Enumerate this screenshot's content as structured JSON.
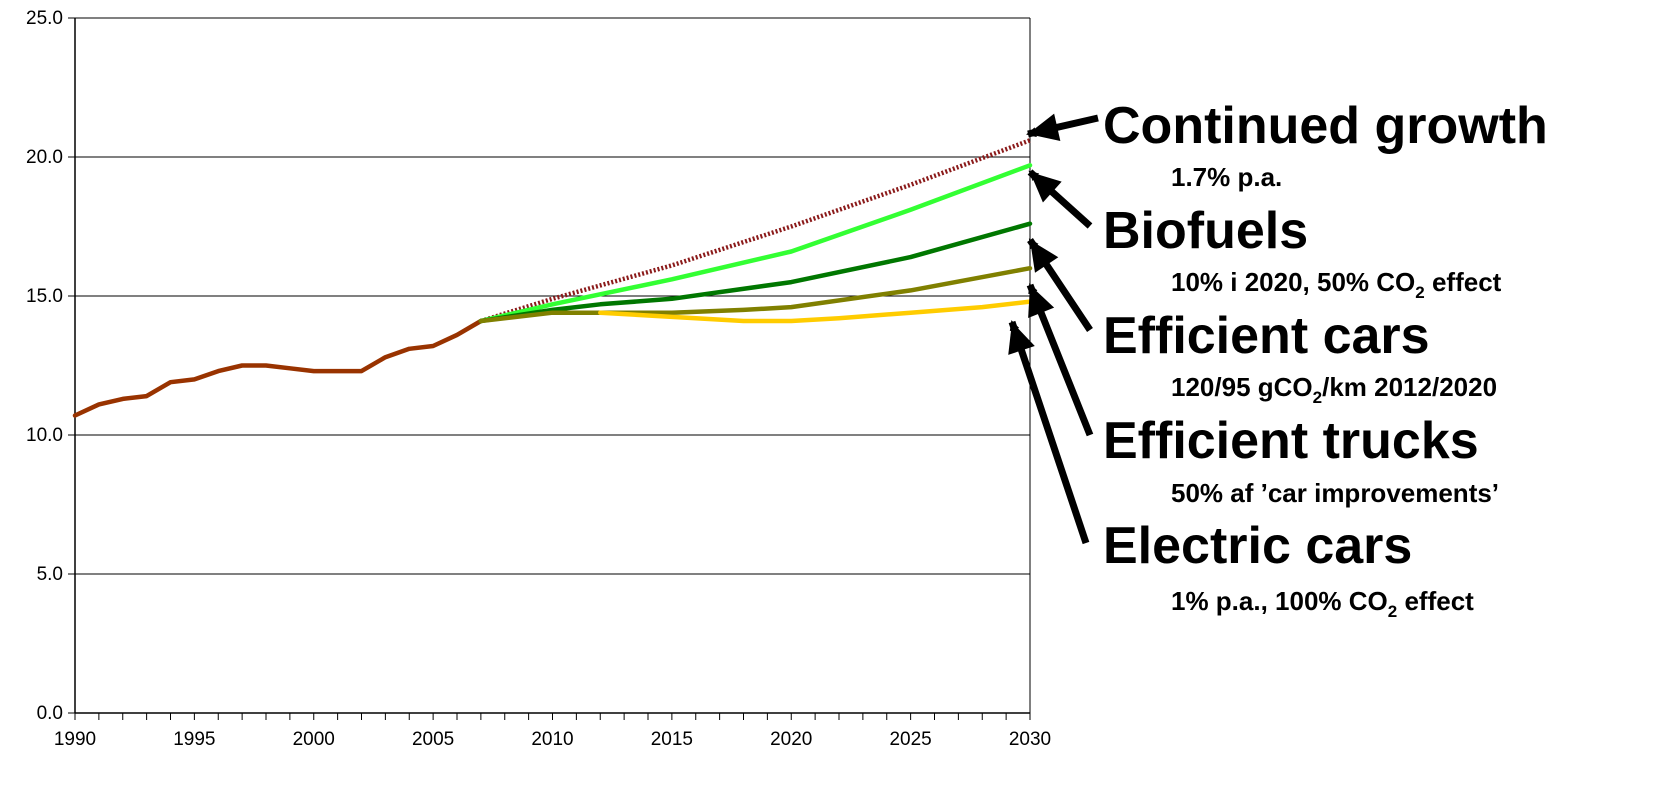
{
  "chart_data": {
    "type": "line",
    "title": "",
    "xlabel": "",
    "ylabel": "",
    "xlim": [
      1990,
      2030
    ],
    "ylim": [
      0,
      25
    ],
    "x_ticks": [
      "1990",
      "1995",
      "2000",
      "2005",
      "2010",
      "2015",
      "2020",
      "2025",
      "2030"
    ],
    "y_ticks": [
      "0.0",
      "5.0",
      "10.0",
      "15.0",
      "20.0",
      "25.0"
    ],
    "grid": "horizontal",
    "legend": "none",
    "series": [
      {
        "key": "historical",
        "color": "#993300",
        "dashed": false,
        "x": [
          1990,
          1991,
          1992,
          1993,
          1994,
          1995,
          1996,
          1997,
          1998,
          1999,
          2000,
          2001,
          2002,
          2003,
          2004,
          2005,
          2006,
          2007
        ],
        "y": [
          10.7,
          11.1,
          11.3,
          11.4,
          11.9,
          12.0,
          12.3,
          12.5,
          12.5,
          12.4,
          12.3,
          12.3,
          12.3,
          12.8,
          13.1,
          13.2,
          13.6,
          14.1
        ]
      },
      {
        "key": "continued-growth",
        "color": "#8B1A1A",
        "dashed": true,
        "x": [
          2007,
          2010,
          2015,
          2020,
          2025,
          2030
        ],
        "y": [
          14.1,
          14.9,
          16.1,
          17.5,
          19.0,
          20.6
        ]
      },
      {
        "key": "biofuels",
        "color": "#33FF33",
        "dashed": false,
        "x": [
          2007,
          2010,
          2015,
          2020,
          2025,
          2030
        ],
        "y": [
          14.1,
          14.7,
          15.6,
          16.6,
          18.1,
          19.7
        ]
      },
      {
        "key": "efficient-cars",
        "color": "#007700",
        "dashed": false,
        "x": [
          2007,
          2010,
          2012,
          2015,
          2020,
          2025,
          2030
        ],
        "y": [
          14.1,
          14.5,
          14.7,
          14.9,
          15.5,
          16.4,
          17.6
        ]
      },
      {
        "key": "efficient-trucks",
        "color": "#808000",
        "dashed": false,
        "x": [
          2007,
          2010,
          2012,
          2015,
          2018,
          2020,
          2025,
          2030
        ],
        "y": [
          14.1,
          14.4,
          14.4,
          14.4,
          14.5,
          14.6,
          15.2,
          16.0
        ]
      },
      {
        "key": "electric-cars",
        "color": "#FFCC00",
        "dashed": false,
        "x": [
          2012,
          2014,
          2016,
          2018,
          2020,
          2022,
          2025,
          2028,
          2030
        ],
        "y": [
          14.4,
          14.3,
          14.2,
          14.1,
          14.1,
          14.2,
          14.4,
          14.6,
          14.8
        ]
      }
    ],
    "annotations": [
      {
        "title": "Continued growth",
        "sub_parts": [
          {
            "t": "1.7% p.a."
          }
        ]
      },
      {
        "title": "Biofuels",
        "sub_parts": [
          {
            "t": "10% i 2020, 50% CO"
          },
          {
            "t": "2",
            "sub": true
          },
          {
            "t": " effect"
          }
        ]
      },
      {
        "title": "Efficient cars",
        "sub_parts": [
          {
            "t": "120/95 gCO"
          },
          {
            "t": "2",
            "sub": true
          },
          {
            "t": "/km 2012/2020"
          }
        ]
      },
      {
        "title": "Efficient trucks",
        "sub_parts": [
          {
            "t": "50% af ’car improvements’"
          }
        ]
      },
      {
        "title": "Electric cars",
        "sub_parts": [
          {
            "t": "1% p.a., 100% CO"
          },
          {
            "t": "2",
            "sub": true
          },
          {
            "t": " effect"
          }
        ]
      }
    ]
  }
}
